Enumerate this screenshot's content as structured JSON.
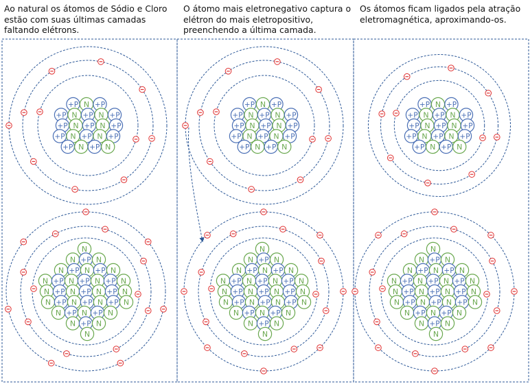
{
  "panels": [
    {
      "caption": "Ao natural os átomos de Sódio e Cloro\nestão com suas últimas camadas\nfaltando elétrons."
    },
    {
      "caption": "O átomo mais eletronegativo captura o\nelétron do mais eletropositivo,\npreenchendo a última camada."
    },
    {
      "caption": "Os átomos ficam ligados pela atração\neletromagnética, aproximando-os."
    }
  ],
  "particle_labels": {
    "proton": "+P",
    "neutron": "N",
    "electron": "⊖"
  },
  "colors": {
    "proton": "#4a6fb5",
    "neutron": "#6aa84f",
    "electron": "#e03030",
    "orbit": "#2b5797",
    "border": "#2b5797",
    "arrow": "#2b5797"
  }
}
